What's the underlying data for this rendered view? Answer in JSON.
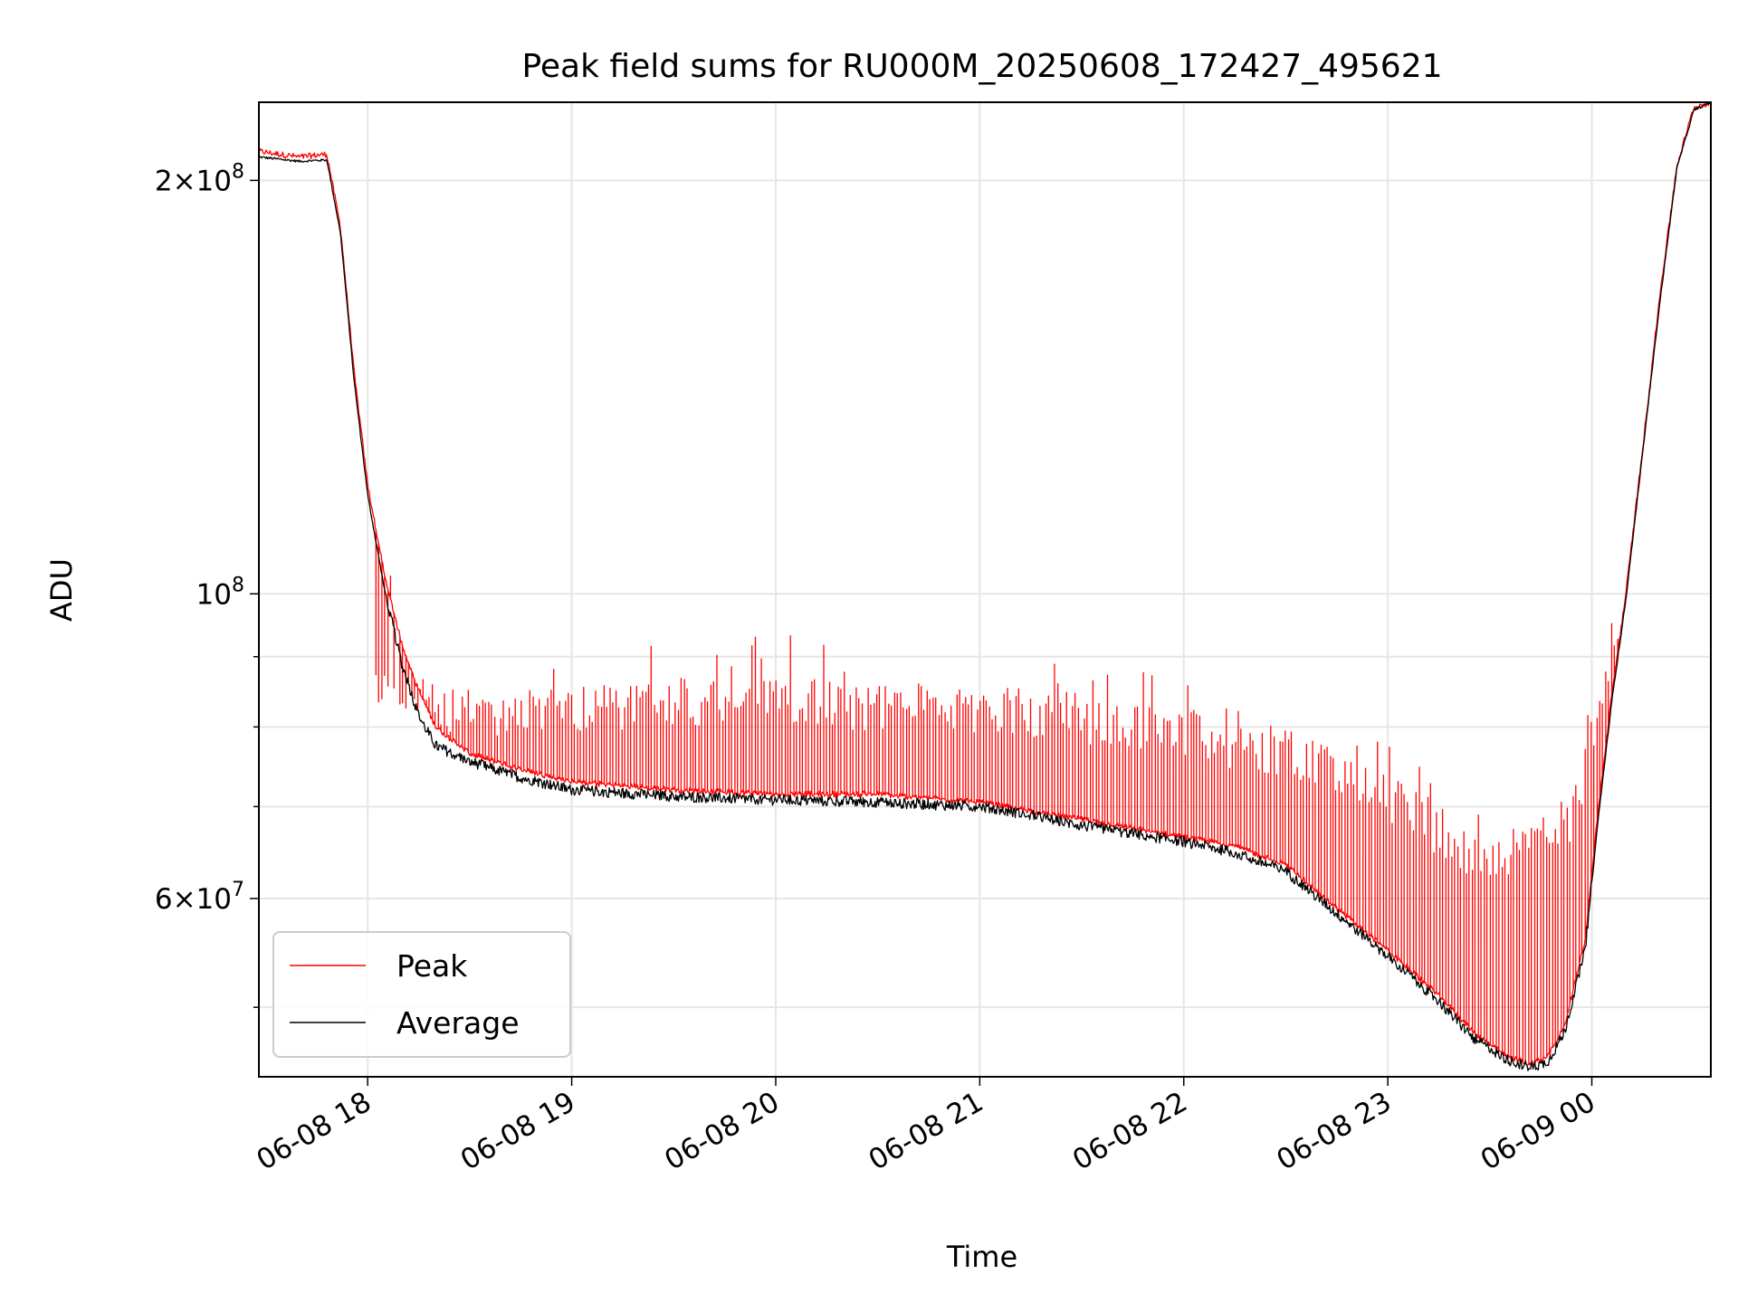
{
  "chart_data": {
    "type": "line",
    "title": "Peak field sums for RU000M_20250608_172427_495621",
    "xlabel": "Time",
    "ylabel": "ADU",
    "y_scale": "log",
    "ylim": [
      44500000,
      228000000
    ],
    "xlim": [
      "2025-06-08 17:28",
      "2025-06-09 00:35"
    ],
    "x_ticks": [
      "06-08 18",
      "06-08 19",
      "06-08 20",
      "06-08 21",
      "06-08 22",
      "06-08 23",
      "06-09 00"
    ],
    "x_tick_times": [
      "2025-06-08 18:00",
      "2025-06-08 19:00",
      "2025-06-08 20:00",
      "2025-06-08 21:00",
      "2025-06-08 22:00",
      "2025-06-08 23:00",
      "2025-06-09 00:00"
    ],
    "y_ticks": [
      {
        "value": 60000000,
        "mantissa": "6",
        "exponent": "7"
      },
      {
        "value": 100000000,
        "mantissa": "",
        "exponent": "8"
      },
      {
        "value": 200000000,
        "mantissa": "2",
        "exponent": "8"
      }
    ],
    "y_minor_ticks": [
      50000000,
      70000000,
      80000000,
      90000000
    ],
    "grid": true,
    "legend_position": "lower-left",
    "series": [
      {
        "name": "Peak",
        "color": "#ff0000",
        "x": [
          "2025-06-08 17:28",
          "2025-06-08 17:40",
          "2025-06-08 17:48",
          "2025-06-08 17:52",
          "2025-06-08 17:56",
          "2025-06-08 18:00",
          "2025-06-08 18:05",
          "2025-06-08 18:10",
          "2025-06-08 18:15",
          "2025-06-08 18:20",
          "2025-06-08 18:30",
          "2025-06-08 18:45",
          "2025-06-08 19:00",
          "2025-06-08 19:30",
          "2025-06-08 20:00",
          "2025-06-08 20:30",
          "2025-06-08 21:00",
          "2025-06-08 21:15",
          "2025-06-08 21:30",
          "2025-06-08 22:00",
          "2025-06-08 22:15",
          "2025-06-08 22:30",
          "2025-06-08 22:45",
          "2025-06-08 23:00",
          "2025-06-08 23:15",
          "2025-06-08 23:25",
          "2025-06-08 23:35",
          "2025-06-08 23:42",
          "2025-06-08 23:47",
          "2025-06-08 23:52",
          "2025-06-08 23:58",
          "2025-06-09 00:02",
          "2025-06-09 00:06",
          "2025-06-09 00:10",
          "2025-06-09 00:15",
          "2025-06-09 00:20",
          "2025-06-09 00:25",
          "2025-06-09 00:30",
          "2025-06-09 00:35"
        ],
        "values": [
          210000000,
          208000000,
          209000000,
          185000000,
          145000000,
          120000000,
          103000000,
          92000000,
          85000000,
          80000000,
          76500000,
          74500000,
          73000000,
          72000000,
          71500000,
          71500000,
          70500000,
          69500000,
          68500000,
          66500000,
          65500000,
          63500000,
          59000000,
          55000000,
          51000000,
          48000000,
          46000000,
          45500000,
          46000000,
          48500000,
          56000000,
          70000000,
          85000000,
          100000000,
          128000000,
          165000000,
          205000000,
          226000000,
          228000000
        ],
        "spikes": {
          "count": 420,
          "start": "2025-06-08 18:02",
          "end": "2025-06-09 00:08",
          "amplitude": [
            {
              "t": "2025-06-08 18:02",
              "max": 110000000,
              "typical": 90000000
            },
            {
              "t": "2025-06-08 18:30",
              "max": 90000000,
              "typical": 85000000
            },
            {
              "t": "2025-06-08 19:00",
              "max": 92000000,
              "typical": 86000000
            },
            {
              "t": "2025-06-08 19:30",
              "max": 96000000,
              "typical": 87000000
            },
            {
              "t": "2025-06-08 20:00",
              "max": 95000000,
              "typical": 87000000
            },
            {
              "t": "2025-06-08 20:30",
              "max": 89000000,
              "typical": 86000000
            },
            {
              "t": "2025-06-08 21:00",
              "max": 88000000,
              "typical": 86000000
            },
            {
              "t": "2025-06-08 21:25",
              "max": 92000000,
              "typical": 85000000
            },
            {
              "t": "2025-06-08 22:00",
              "max": 86000000,
              "typical": 82000000
            },
            {
              "t": "2025-06-08 22:30",
              "max": 85000000,
              "typical": 80000000
            },
            {
              "t": "2025-06-08 23:00",
              "max": 78000000,
              "typical": 74000000
            },
            {
              "t": "2025-06-08 23:30",
              "max": 70000000,
              "typical": 66000000
            },
            {
              "t": "2025-06-08 23:55",
              "max": 80000000,
              "typical": 72000000
            },
            {
              "t": "2025-06-09 00:08",
              "max": 100000000,
              "typical": 98000000
            }
          ]
        }
      },
      {
        "name": "Average",
        "color": "#000000",
        "x": [
          "2025-06-08 17:28",
          "2025-06-08 17:40",
          "2025-06-08 17:48",
          "2025-06-08 17:52",
          "2025-06-08 17:56",
          "2025-06-08 18:00",
          "2025-06-08 18:05",
          "2025-06-08 18:10",
          "2025-06-08 18:15",
          "2025-06-08 18:20",
          "2025-06-08 18:30",
          "2025-06-08 18:45",
          "2025-06-08 19:00",
          "2025-06-08 19:30",
          "2025-06-08 20:00",
          "2025-06-08 20:30",
          "2025-06-08 21:00",
          "2025-06-08 21:15",
          "2025-06-08 21:30",
          "2025-06-08 22:00",
          "2025-06-08 22:15",
          "2025-06-08 22:30",
          "2025-06-08 22:45",
          "2025-06-08 23:00",
          "2025-06-08 23:15",
          "2025-06-08 23:25",
          "2025-06-08 23:35",
          "2025-06-08 23:42",
          "2025-06-08 23:47",
          "2025-06-08 23:52",
          "2025-06-08 23:58",
          "2025-06-09 00:02",
          "2025-06-09 00:06",
          "2025-06-09 00:10",
          "2025-06-09 00:15",
          "2025-06-09 00:20",
          "2025-06-09 00:25",
          "2025-06-09 00:30",
          "2025-06-09 00:35"
        ],
        "values": [
          208000000,
          206500000,
          207000000,
          183000000,
          143000000,
          118000000,
          100500000,
          89000000,
          81500000,
          77500000,
          75500000,
          73500000,
          72000000,
          71200000,
          70800000,
          70500000,
          70000000,
          69000000,
          67800000,
          66000000,
          64800000,
          62800000,
          58500000,
          54500000,
          50500000,
          47500000,
          45800000,
          45200000,
          45600000,
          48000000,
          55000000,
          69000000,
          84000000,
          99000000,
          127000000,
          163000000,
          204000000,
          225000000,
          228000000
        ]
      }
    ]
  }
}
